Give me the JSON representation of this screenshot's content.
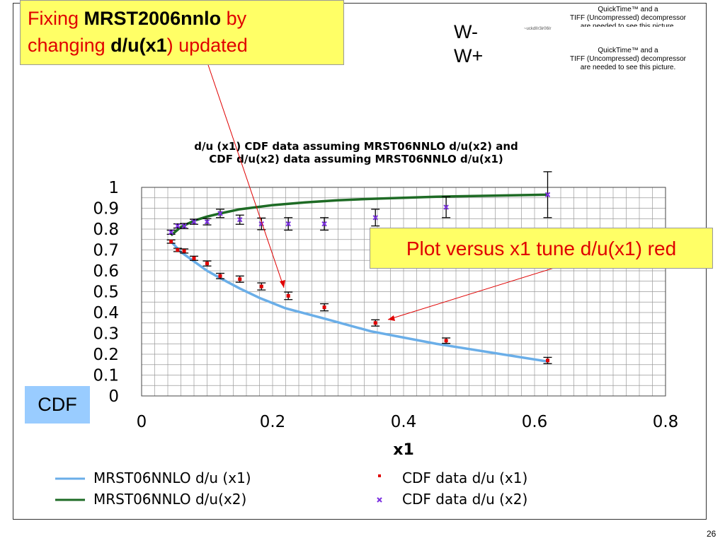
{
  "slide": {
    "title_parts": [
      {
        "text": "Fixing ",
        "bold": false
      },
      {
        "text": "MRST2006nnlo",
        "bold": true
      },
      {
        "text": " by",
        "bold": false
      },
      {
        "text": "changing ",
        "bold": false,
        "newline": true
      },
      {
        "text": "d/u(x1",
        "bold": true
      },
      {
        "text": ")  updated",
        "bold": false
      }
    ],
    "w_label_top": "W-",
    "w_label_bottom": "W+",
    "quicktime_small": "~uckdIIr3ir06Ir",
    "quicktime_line1": "QuickTime™ and a",
    "quicktime_line2": "TIFF (Uncompressed) decompressor",
    "quicktime_line3": "are needed to see this picture.",
    "quicktime_overlap": "QuickTime™ and a",
    "quicktime_overlap2": "TIFF (Uncompressed) decompressor",
    "quicktime_overlap3": "are needed to see this picture.",
    "note": "Plot versus x1 tune d/u(x1) red",
    "cdf_label": "CDF",
    "page_number": "26"
  },
  "chart_data": {
    "type": "scatter",
    "title_line1": "d/u (x1) CDF data assuming MRST06NNLO  d/u(x2) and",
    "title_line2": "CDF d/u(x2) data assuming MRST06NNLO  d/u(x1)",
    "xlabel": "x1",
    "ylabel": "",
    "xlim": [
      0,
      0.8
    ],
    "ylim": [
      0,
      1
    ],
    "x_ticks": [
      "0",
      "0.2",
      "0.4",
      "0.6",
      "0.8"
    ],
    "y_ticks": [
      "0",
      "0.1",
      "0.2",
      "0.3",
      "0.4",
      "0.5",
      "0.6",
      "0.7",
      "0.8",
      "0.9",
      "1"
    ],
    "grid": true,
    "legend_position": "bottom",
    "series": [
      {
        "name": "MRST06NNLO d/u (x1)",
        "kind": "line",
        "color": "#6aaee8",
        "x": [
          0.045,
          0.06,
          0.08,
          0.1,
          0.12,
          0.15,
          0.18,
          0.22,
          0.28,
          0.35,
          0.45,
          0.62
        ],
        "y": [
          0.74,
          0.69,
          0.645,
          0.6,
          0.565,
          0.515,
          0.47,
          0.42,
          0.37,
          0.31,
          0.25,
          0.165
        ]
      },
      {
        "name": "MRST06NNLO d/u(x2)",
        "kind": "line",
        "color": "#1e6b25",
        "x": [
          0.045,
          0.06,
          0.08,
          0.1,
          0.12,
          0.15,
          0.2,
          0.25,
          0.3,
          0.35,
          0.45,
          0.62
        ],
        "y": [
          0.77,
          0.81,
          0.84,
          0.86,
          0.875,
          0.895,
          0.915,
          0.928,
          0.938,
          0.945,
          0.955,
          0.965
        ]
      },
      {
        "name": "CDF data d/u (x1)",
        "kind": "points",
        "color": "#e00000",
        "x": [
          0.045,
          0.055,
          0.065,
          0.08,
          0.1,
          0.12,
          0.15,
          0.183,
          0.224,
          0.279,
          0.357,
          0.465,
          0.62
        ],
        "y": [
          0.74,
          0.7,
          0.695,
          0.66,
          0.635,
          0.575,
          0.56,
          0.525,
          0.48,
          0.425,
          0.35,
          0.265,
          0.17
        ],
        "err": [
          0.008,
          0.008,
          0.01,
          0.01,
          0.012,
          0.013,
          0.015,
          0.017,
          0.018,
          0.017,
          0.015,
          0.013,
          0.015
        ]
      },
      {
        "name": "CDF  data d/u (x2)",
        "kind": "points",
        "color": "#7b2fe0",
        "x": [
          0.045,
          0.055,
          0.065,
          0.08,
          0.1,
          0.12,
          0.15,
          0.183,
          0.224,
          0.279,
          0.357,
          0.465,
          0.62
        ],
        "y": [
          0.785,
          0.815,
          0.815,
          0.835,
          0.835,
          0.875,
          0.845,
          0.825,
          0.825,
          0.825,
          0.855,
          0.905,
          0.965
        ],
        "err": [
          0.01,
          0.01,
          0.012,
          0.012,
          0.015,
          0.02,
          0.022,
          0.028,
          0.03,
          0.03,
          0.04,
          0.05,
          0.11
        ]
      }
    ]
  }
}
